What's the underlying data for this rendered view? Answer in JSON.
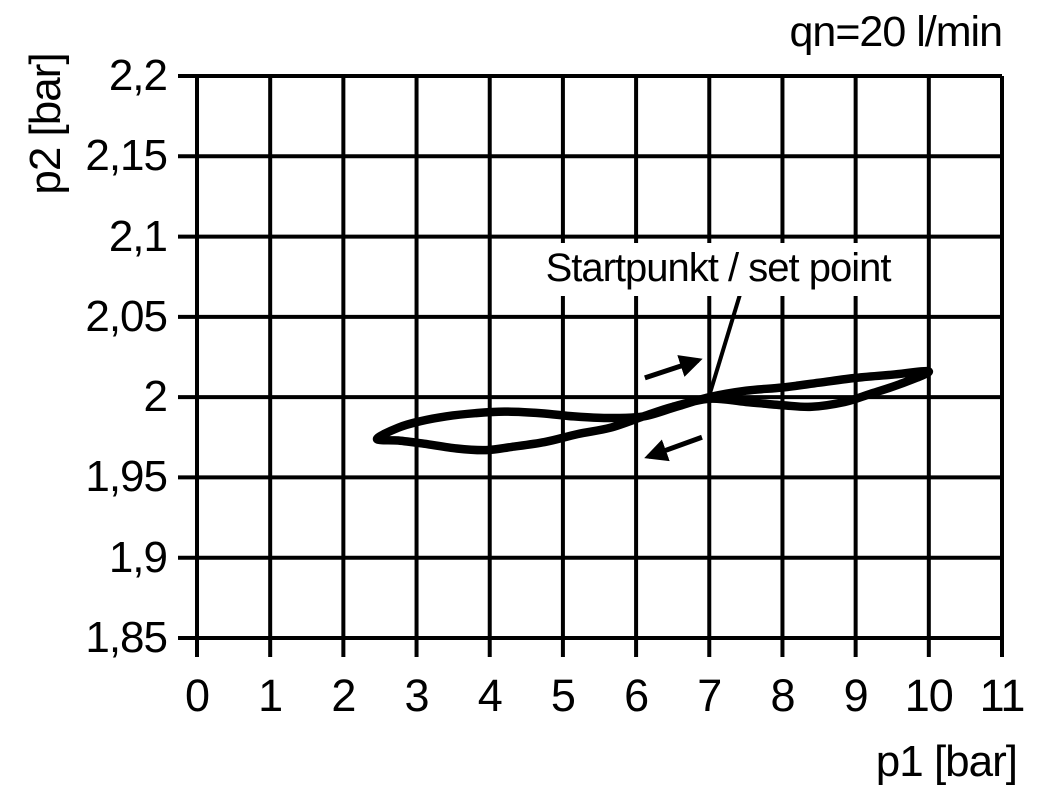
{
  "chart_data": {
    "type": "line",
    "title": "qn=20 l/min",
    "xlabel": "p1 [bar]",
    "ylabel": "p2 [bar]",
    "xlim": [
      0,
      11
    ],
    "ylim": [
      1.85,
      2.2
    ],
    "grid": true,
    "x_ticks": [
      0,
      1,
      2,
      3,
      4,
      5,
      6,
      7,
      8,
      9,
      10,
      11
    ],
    "x_tick_labels": [
      "0",
      "1",
      "2",
      "3",
      "4",
      "5",
      "6",
      "7",
      "8",
      "9",
      "10",
      "11"
    ],
    "y_ticks": [
      2.2,
      2.15,
      2.1,
      2.05,
      2.0,
      1.95,
      1.9,
      1.85
    ],
    "y_tick_labels": [
      "2,2",
      "2,15",
      "2,1",
      "2,05",
      "2",
      "1,95",
      "1,9",
      "1,85"
    ],
    "series": [
      {
        "name": "hysteresis-loop",
        "closed": true,
        "points": [
          [
            2.46,
            1.974
          ],
          [
            2.75,
            1.981
          ],
          [
            3.05,
            1.985
          ],
          [
            3.4,
            1.988
          ],
          [
            3.8,
            1.99
          ],
          [
            4.2,
            1.991
          ],
          [
            4.7,
            1.99
          ],
          [
            5.15,
            1.988
          ],
          [
            5.6,
            1.987
          ],
          [
            6.1,
            1.988
          ],
          [
            6.55,
            1.994
          ],
          [
            7.0,
            2.0
          ],
          [
            7.5,
            2.004
          ],
          [
            8.0,
            2.006
          ],
          [
            8.5,
            2.009
          ],
          [
            9.0,
            2.012
          ],
          [
            9.5,
            2.014
          ],
          [
            10.0,
            2.016
          ],
          [
            9.6,
            2.008
          ],
          [
            9.2,
            2.002
          ],
          [
            8.85,
            1.997
          ],
          [
            8.4,
            1.994
          ],
          [
            8.0,
            1.995
          ],
          [
            7.5,
            1.997
          ],
          [
            7.0,
            1.999
          ],
          [
            6.5,
            1.994
          ],
          [
            6.1,
            1.988
          ],
          [
            5.65,
            1.981
          ],
          [
            5.2,
            1.977
          ],
          [
            4.75,
            1.972
          ],
          [
            4.3,
            1.969
          ],
          [
            3.95,
            1.967
          ],
          [
            3.55,
            1.968
          ],
          [
            3.1,
            1.971
          ],
          [
            2.75,
            1.973
          ]
        ]
      }
    ],
    "annotation": {
      "label": "Startpunkt / set point",
      "set_point": [
        7.0,
        2.0
      ],
      "leader_from": [
        7.42,
        2.064
      ],
      "leader_to": [
        6.98,
        1.998
      ]
    },
    "arrows": [
      {
        "name": "increasing-direction",
        "from": [
          6.12,
          2.012
        ],
        "to": [
          6.85,
          2.023
        ]
      },
      {
        "name": "decreasing-direction",
        "from": [
          6.9,
          1.975
        ],
        "to": [
          6.17,
          1.963
        ]
      }
    ],
    "colors": {
      "line": "#000000",
      "grid": "#000000",
      "background": "#ffffff",
      "text": "#000000"
    }
  }
}
